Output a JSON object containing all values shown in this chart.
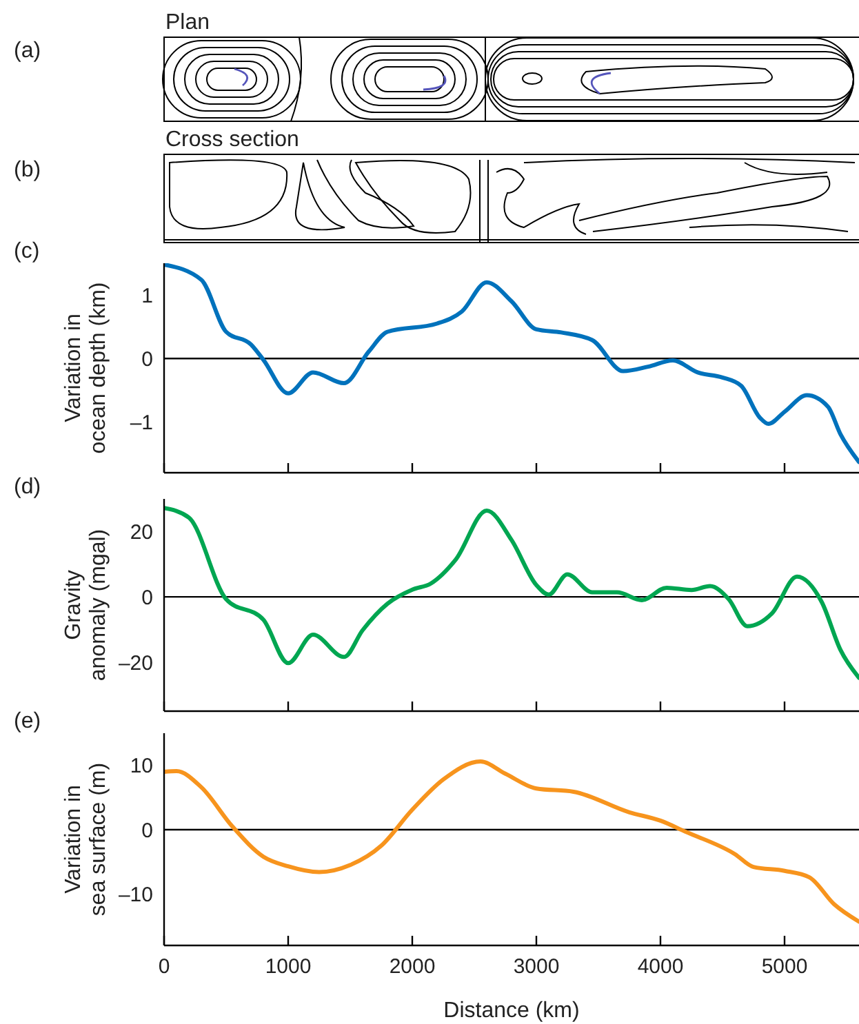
{
  "chart_data": [
    {
      "type": "other",
      "title": "Plan",
      "annotations": [
        "(a)"
      ]
    },
    {
      "type": "other",
      "title": "Cross section",
      "annotations": [
        "(b)"
      ]
    },
    {
      "type": "line",
      "annotations": [
        "(c)"
      ],
      "ylabel": "Variation in ocean depth (km)",
      "x": [
        0,
        300,
        500,
        700,
        800,
        1000,
        1200,
        1450,
        1650,
        1800,
        2200,
        2400,
        2600,
        2800,
        3000,
        3200,
        3450,
        3700,
        3900,
        4100,
        4300,
        4500,
        4650,
        4800,
        4870,
        5000,
        5180,
        5350,
        5450,
        5600
      ],
      "series": [
        {
          "color": "#0072bc",
          "values": [
            1.48,
            1.24,
            0.42,
            0.22,
            -0.02,
            -0.55,
            -0.22,
            -0.39,
            0.11,
            0.42,
            0.55,
            0.74,
            1.2,
            0.9,
            0.46,
            0.41,
            0.29,
            -0.2,
            -0.13,
            -0.03,
            -0.22,
            -0.3,
            -0.43,
            -0.93,
            -1.03,
            -0.84,
            -0.58,
            -0.76,
            -1.19,
            -1.63
          ]
        }
      ],
      "xlim": [
        0,
        5600
      ],
      "xticks": [
        0,
        1000,
        2000,
        3000,
        4000,
        5000
      ],
      "ylim": [
        -1.8,
        1.5
      ],
      "yticks": [
        {
          "value": -1,
          "label": "–1"
        },
        0,
        1
      ],
      "tick_labels": "y",
      "ref_lines": [
        {
          "axis": "y",
          "value": 0,
          "color": "#000000"
        }
      ],
      "marker": "none"
    },
    {
      "type": "line",
      "annotations": [
        "(d)"
      ],
      "ylabel": "Gravity anomaly (mgal)",
      "x": [
        0,
        200,
        500,
        800,
        1000,
        1200,
        1450,
        1600,
        1800,
        2000,
        2150,
        2350,
        2600,
        2800,
        3000,
        3100,
        3250,
        3450,
        3650,
        3850,
        4050,
        4250,
        4400,
        4550,
        4700,
        4900,
        5100,
        5300,
        5450,
        5600
      ],
      "series": [
        {
          "color": "#00a651",
          "values": [
            27.2,
            24.3,
            -0.7,
            -7,
            -20.3,
            -11.6,
            -18.4,
            -10.2,
            -2.1,
            2.2,
            4.1,
            11.4,
            26.4,
            17.4,
            3.6,
            0.7,
            6.9,
            1.4,
            1.4,
            -1,
            2.8,
            2.1,
            3.3,
            -0.7,
            -9,
            -5,
            6.2,
            -1.6,
            -16.2,
            -24.8
          ]
        }
      ],
      "xlim": [
        0,
        5600
      ],
      "xticks": [
        0,
        1000,
        2000,
        3000,
        4000,
        5000
      ],
      "ylim": [
        -35,
        30
      ],
      "yticks": [
        {
          "value": -20,
          "label": "–20"
        },
        0,
        20
      ],
      "tick_labels": "y",
      "ref_lines": [
        {
          "axis": "y",
          "value": 0,
          "color": "#000000"
        }
      ],
      "marker": "none"
    },
    {
      "type": "line",
      "annotations": [
        "(e)"
      ],
      "ylabel": "Variation in sea surface (m)",
      "xlabel": "Distance (km)",
      "x": [
        0,
        100,
        300,
        550,
        800,
        1000,
        1250,
        1500,
        1750,
        2000,
        2250,
        2550,
        2750,
        3000,
        3300,
        3750,
        4000,
        4200,
        4600,
        4750,
        5000,
        5200,
        5400,
        5600
      ],
      "series": [
        {
          "color": "#f7941d",
          "values": [
            9,
            9.1,
            6.6,
            0.5,
            -4.2,
            -5.7,
            -6.6,
            -5.5,
            -2.5,
            3.1,
            7.8,
            10.6,
            8.7,
            6.4,
            5.9,
            2.7,
            1.4,
            -0.3,
            -3.8,
            -5.8,
            -6.4,
            -7.4,
            -11.6,
            -14.3
          ]
        }
      ],
      "xlim": [
        0,
        5600
      ],
      "xticks": [
        0,
        1000,
        2000,
        3000,
        4000,
        5000
      ],
      "ylim": [
        -18,
        15
      ],
      "yticks": [
        {
          "value": -10,
          "label": "–10"
        },
        0,
        10
      ],
      "ref_lines": [
        {
          "axis": "y",
          "value": 0,
          "color": "#000000"
        }
      ],
      "marker": "none"
    }
  ]
}
